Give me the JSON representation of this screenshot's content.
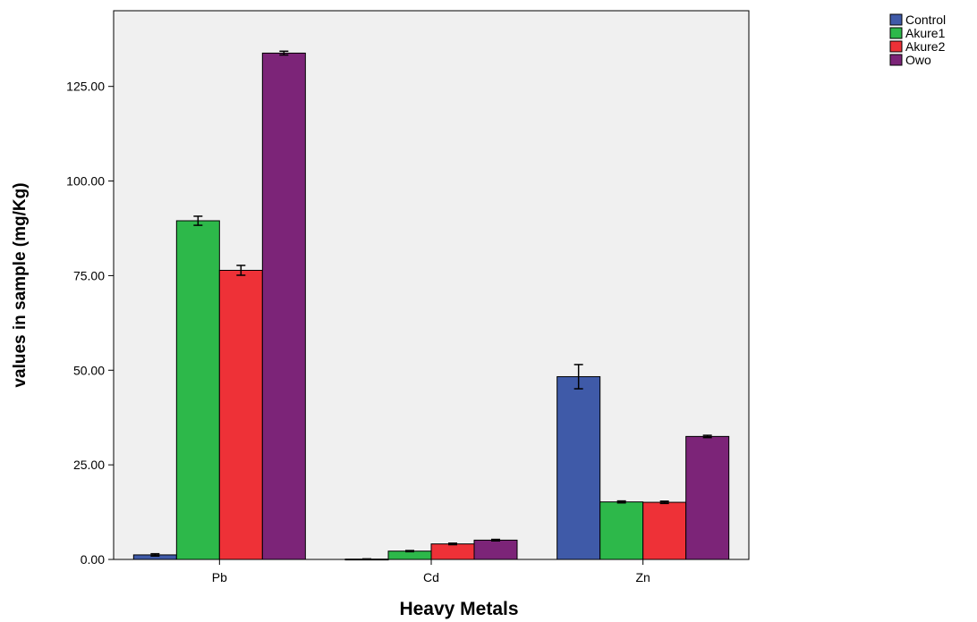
{
  "chart_data": {
    "type": "bar",
    "xlabel": "Heavy Metals",
    "ylabel": "values in sample (mg/Kg)",
    "categories": [
      "Pb",
      "Cd",
      "Zn"
    ],
    "ylim": [
      0,
      145
    ],
    "yticks": [
      0,
      25,
      50,
      75,
      100,
      125
    ],
    "ytick_labels": [
      "0.00",
      "25.00",
      "50.00",
      "75.00",
      "100.00",
      "125.00"
    ],
    "grid": false,
    "legend_position": "top-right",
    "error_bars": true,
    "series": [
      {
        "name": "Control",
        "color": "#3f5aa8",
        "values": [
          1.2,
          0.1,
          48.3
        ],
        "errors": [
          0.3,
          0.05,
          3.2
        ]
      },
      {
        "name": "Akure1",
        "color": "#2db84a",
        "values": [
          89.5,
          2.2,
          15.2
        ],
        "errors": [
          1.2,
          0.15,
          0.25
        ]
      },
      {
        "name": "Akure2",
        "color": "#ee3137",
        "values": [
          76.4,
          4.1,
          15.1
        ],
        "errors": [
          1.3,
          0.2,
          0.3
        ]
      },
      {
        "name": "Owo",
        "color": "#7c2478",
        "values": [
          133.8,
          5.1,
          32.5
        ],
        "errors": [
          0.5,
          0.2,
          0.3
        ]
      }
    ]
  }
}
